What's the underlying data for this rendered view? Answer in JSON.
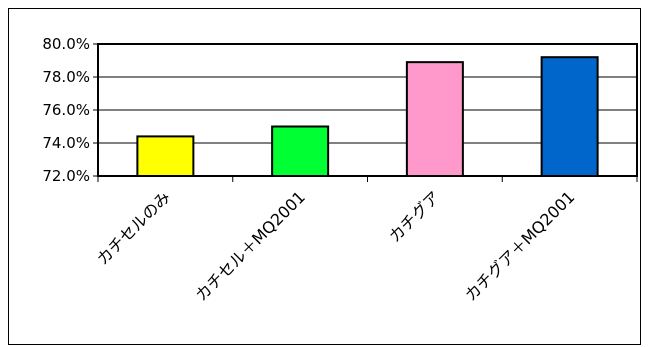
{
  "chart_data": {
    "type": "bar",
    "title": "",
    "xlabel": "",
    "ylabel": "",
    "categories": [
      "カチセルのみ",
      "カチセル＋MQ2001",
      "カチグア",
      "カチグア＋MQ2001"
    ],
    "values": [
      74.4,
      75.0,
      78.9,
      79.2
    ],
    "bar_colors": [
      "#FFFF00",
      "#00FF33",
      "#FF99CC",
      "#0066CC"
    ],
    "ylim": [
      72.0,
      80.0
    ],
    "yticks": [
      72.0,
      74.0,
      76.0,
      78.0,
      80.0
    ],
    "ytick_labels": [
      "72.0%",
      "74.0%",
      "76.0%",
      "78.0%",
      "80.0%"
    ],
    "grid": true,
    "legend": "none"
  }
}
